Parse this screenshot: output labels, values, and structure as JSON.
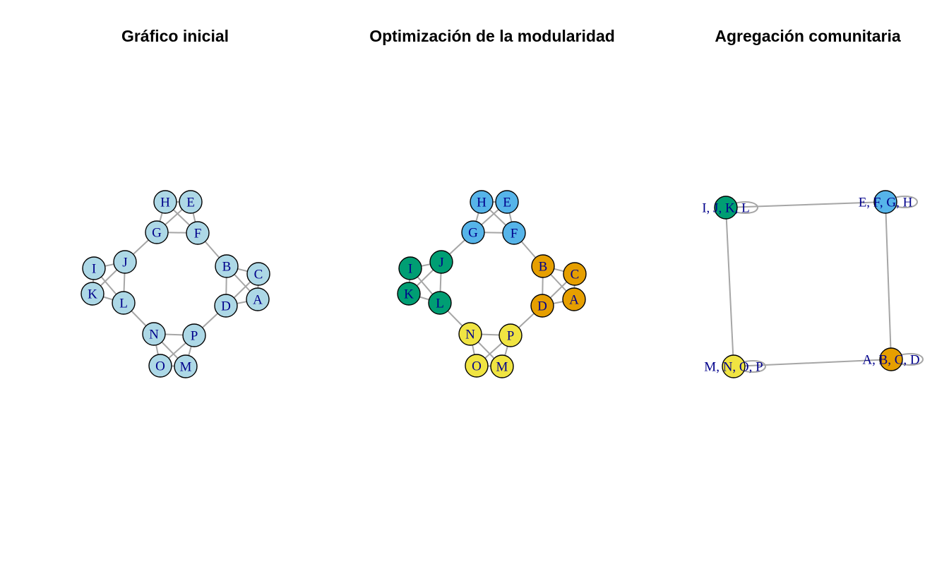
{
  "panels": [
    {
      "title": "Gráfico inicial",
      "nodes": [
        {
          "id": "H",
          "color": "#add8e6"
        },
        {
          "id": "E",
          "color": "#add8e6"
        },
        {
          "id": "G",
          "color": "#add8e6"
        },
        {
          "id": "F",
          "color": "#add8e6"
        },
        {
          "id": "B",
          "color": "#add8e6"
        },
        {
          "id": "C",
          "color": "#add8e6"
        },
        {
          "id": "D",
          "color": "#add8e6"
        },
        {
          "id": "A",
          "color": "#add8e6"
        },
        {
          "id": "I",
          "color": "#add8e6"
        },
        {
          "id": "J",
          "color": "#add8e6"
        },
        {
          "id": "K",
          "color": "#add8e6"
        },
        {
          "id": "L",
          "color": "#add8e6"
        },
        {
          "id": "N",
          "color": "#add8e6"
        },
        {
          "id": "P",
          "color": "#add8e6"
        },
        {
          "id": "O",
          "color": "#add8e6"
        },
        {
          "id": "M",
          "color": "#add8e6"
        }
      ]
    },
    {
      "title": "Optimización de la modularidad",
      "nodes": [
        {
          "id": "H",
          "color": "#56b4e9"
        },
        {
          "id": "E",
          "color": "#56b4e9"
        },
        {
          "id": "G",
          "color": "#56b4e9"
        },
        {
          "id": "F",
          "color": "#56b4e9"
        },
        {
          "id": "B",
          "color": "#e69f00"
        },
        {
          "id": "C",
          "color": "#e69f00"
        },
        {
          "id": "D",
          "color": "#e69f00"
        },
        {
          "id": "A",
          "color": "#e69f00"
        },
        {
          "id": "I",
          "color": "#009e73"
        },
        {
          "id": "J",
          "color": "#009e73"
        },
        {
          "id": "K",
          "color": "#009e73"
        },
        {
          "id": "L",
          "color": "#009e73"
        },
        {
          "id": "N",
          "color": "#f0e442"
        },
        {
          "id": "P",
          "color": "#f0e442"
        },
        {
          "id": "O",
          "color": "#f0e442"
        },
        {
          "id": "M",
          "color": "#f0e442"
        }
      ]
    },
    {
      "title": "Agregación comunitaria",
      "nodes": [
        {
          "id": "I, J, K, L",
          "color": "#009e73"
        },
        {
          "id": "E, F, G, H",
          "color": "#56b4e9"
        },
        {
          "id": "A, B, C, D",
          "color": "#e69f00"
        },
        {
          "id": "M, N, O, P",
          "color": "#f0e442"
        }
      ]
    }
  ],
  "edges": [
    [
      "H",
      "E"
    ],
    [
      "H",
      "G"
    ],
    [
      "H",
      "F"
    ],
    [
      "E",
      "G"
    ],
    [
      "E",
      "F"
    ],
    [
      "G",
      "F"
    ],
    [
      "B",
      "C"
    ],
    [
      "B",
      "D"
    ],
    [
      "B",
      "A"
    ],
    [
      "C",
      "D"
    ],
    [
      "C",
      "A"
    ],
    [
      "D",
      "A"
    ],
    [
      "I",
      "J"
    ],
    [
      "I",
      "K"
    ],
    [
      "I",
      "L"
    ],
    [
      "J",
      "K"
    ],
    [
      "J",
      "L"
    ],
    [
      "K",
      "L"
    ],
    [
      "N",
      "P"
    ],
    [
      "N",
      "O"
    ],
    [
      "N",
      "M"
    ],
    [
      "P",
      "O"
    ],
    [
      "P",
      "M"
    ],
    [
      "O",
      "M"
    ],
    [
      "G",
      "J"
    ],
    [
      "F",
      "B"
    ],
    [
      "L",
      "N"
    ],
    [
      "D",
      "P"
    ]
  ],
  "community_edges": [
    [
      "I, J, K, L",
      "E, F, G, H"
    ],
    [
      "E, F, G, H",
      "A, B, C, D"
    ],
    [
      "A, B, C, D",
      "M, N, O, P"
    ],
    [
      "M, N, O, P",
      "I, J, K, L"
    ]
  ],
  "colors": {
    "edge": "#a6a6a6",
    "label": "#00008b",
    "node_border": "#000000"
  }
}
